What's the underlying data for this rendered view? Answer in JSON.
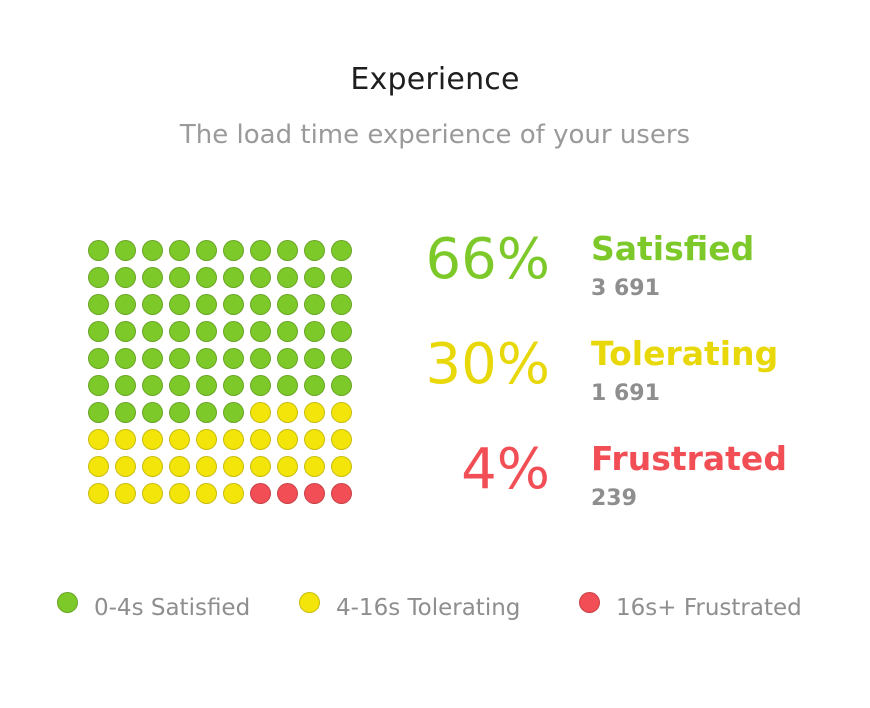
{
  "header": {
    "title": "Experience",
    "subtitle": "The load time experience of your users"
  },
  "colors": {
    "satisfied": "#7ec92a",
    "tolerating": "#f3e50a",
    "frustrated": "#f24e55"
  },
  "stats": [
    {
      "percent": "66%",
      "label": "Satisfied",
      "count": "3 691",
      "color": "#7ec92a"
    },
    {
      "percent": "30%",
      "label": "Tolerating",
      "count": "1 691",
      "color": "#e8d80a"
    },
    {
      "percent": "4%",
      "label": "Frustrated",
      "count": "239",
      "color": "#f24e55"
    }
  ],
  "legend": [
    {
      "label": "0-4s Satisfied",
      "color": "#7ec92a"
    },
    {
      "label": "4-16s Tolerating",
      "color": "#f3e50a"
    },
    {
      "label": "16s+ Frustrated",
      "color": "#f24e55"
    }
  ],
  "chart_data": {
    "type": "waffle",
    "title": "Experience",
    "subtitle": "The load time experience of your users",
    "grid": {
      "rows": 10,
      "cols": 10
    },
    "categories": [
      "Satisfied",
      "Tolerating",
      "Frustrated"
    ],
    "values": [
      66,
      30,
      4
    ],
    "counts": [
      3691,
      1691,
      239
    ],
    "colors": [
      "#7ec92a",
      "#f3e50a",
      "#f24e55"
    ],
    "legend": [
      "0-4s Satisfied",
      "4-16s Tolerating",
      "16s+ Frustrated"
    ]
  }
}
